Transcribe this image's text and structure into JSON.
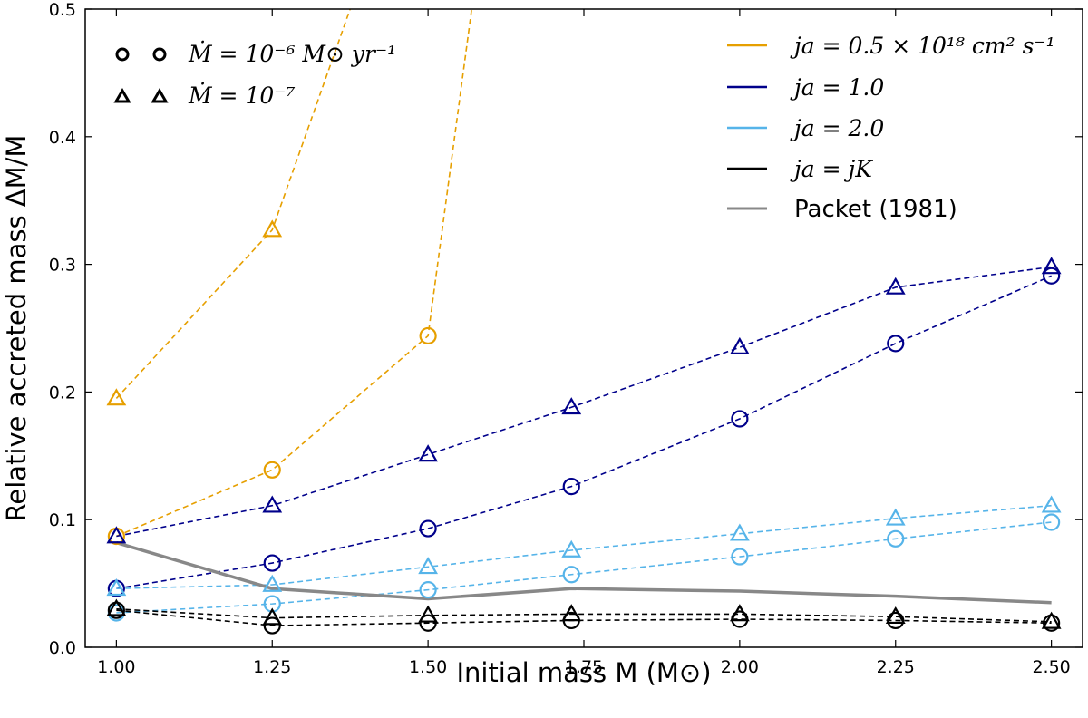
{
  "chart_data": {
    "type": "line",
    "xlabel": "Initial mass M (M⊙)",
    "ylabel": "Relative accreted mass ΔM/M",
    "xlim": [
      0.95,
      2.55
    ],
    "ylim": [
      0.0,
      0.5
    ],
    "xticks": [
      1.0,
      1.25,
      1.5,
      1.75,
      2.0,
      2.25,
      2.5
    ],
    "xtick_labels": [
      "1.00",
      "1.25",
      "1.50",
      "1.75",
      "2.00",
      "2.25",
      "2.50"
    ],
    "yticks": [
      0.0,
      0.1,
      0.2,
      0.3,
      0.4,
      0.5
    ],
    "ytick_labels": [
      "0.0",
      "0.1",
      "0.2",
      "0.3",
      "0.4",
      "0.5"
    ],
    "colors": {
      "orange": "#e69f00",
      "darkblue": "#00008b",
      "lightblue": "#56b4e9",
      "black": "#000000",
      "gray": "#888888"
    },
    "series": [
      {
        "name": "ja=0.5, Mdot=1e-6",
        "color": "orange",
        "marker": "circle",
        "dashed": true,
        "x": [
          1.0,
          1.25,
          1.5,
          1.57
        ],
        "y": [
          0.087,
          0.139,
          0.244,
          0.5
        ],
        "marker_count": 3
      },
      {
        "name": "ja=0.5, Mdot=1e-7",
        "color": "orange",
        "marker": "triangle",
        "dashed": true,
        "x": [
          1.0,
          1.25,
          1.375
        ],
        "y": [
          0.195,
          0.327,
          0.5
        ],
        "marker_count": 2
      },
      {
        "name": "ja=1.0, Mdot=1e-6",
        "color": "darkblue",
        "marker": "circle",
        "dashed": true,
        "x": [
          1.0,
          1.25,
          1.5,
          1.73,
          2.0,
          2.25,
          2.5
        ],
        "y": [
          0.046,
          0.066,
          0.093,
          0.126,
          0.179,
          0.238,
          0.291
        ]
      },
      {
        "name": "ja=1.0, Mdot=1e-7",
        "color": "darkblue",
        "marker": "triangle",
        "dashed": true,
        "x": [
          1.0,
          1.25,
          1.5,
          1.73,
          2.0,
          2.25,
          2.5
        ],
        "y": [
          0.087,
          0.111,
          0.151,
          0.188,
          0.235,
          0.282,
          0.298
        ]
      },
      {
        "name": "ja=2.0, Mdot=1e-6",
        "color": "lightblue",
        "marker": "circle",
        "dashed": true,
        "x": [
          1.0,
          1.25,
          1.5,
          1.73,
          2.0,
          2.25,
          2.5
        ],
        "y": [
          0.027,
          0.034,
          0.045,
          0.057,
          0.071,
          0.085,
          0.098
        ]
      },
      {
        "name": "ja=2.0, Mdot=1e-7",
        "color": "lightblue",
        "marker": "triangle",
        "dashed": true,
        "x": [
          1.0,
          1.25,
          1.5,
          1.73,
          2.0,
          2.25,
          2.5
        ],
        "y": [
          0.046,
          0.049,
          0.063,
          0.076,
          0.089,
          0.101,
          0.111
        ]
      },
      {
        "name": "ja=jK, Mdot=1e-6",
        "color": "black",
        "marker": "circle",
        "dashed": true,
        "x": [
          1.0,
          1.25,
          1.5,
          1.73,
          2.0,
          2.25,
          2.5
        ],
        "y": [
          0.029,
          0.017,
          0.019,
          0.021,
          0.022,
          0.021,
          0.019
        ]
      },
      {
        "name": "ja=jK, Mdot=1e-7",
        "color": "black",
        "marker": "triangle",
        "dashed": true,
        "x": [
          1.0,
          1.25,
          1.5,
          1.73,
          2.0,
          2.25,
          2.5
        ],
        "y": [
          0.03,
          0.023,
          0.025,
          0.026,
          0.026,
          0.024,
          0.02
        ]
      },
      {
        "name": "Packet (1981)",
        "color": "gray",
        "marker": "none",
        "dashed": false,
        "x": [
          1.0,
          1.25,
          1.5,
          1.73,
          2.0,
          2.25,
          2.5
        ],
        "y": [
          0.082,
          0.046,
          0.038,
          0.046,
          0.044,
          0.04,
          0.035
        ]
      }
    ],
    "legend_marker": {
      "mdot6_label": "Ṁ = 10⁻⁶ M⊙ yr⁻¹",
      "mdot7_label": "Ṁ = 10⁻⁷"
    },
    "legend_color": [
      {
        "label": "ja = 0.5 × 10¹⁸ cm² s⁻¹",
        "color": "orange"
      },
      {
        "label": "ja = 1.0",
        "color": "darkblue"
      },
      {
        "label": "ja = 2.0",
        "color": "lightblue"
      },
      {
        "label": "ja = jK",
        "color": "black"
      },
      {
        "label": "Packet (1981)",
        "color": "gray"
      }
    ],
    "legend_placement": "top-left markers, top-right colors"
  }
}
